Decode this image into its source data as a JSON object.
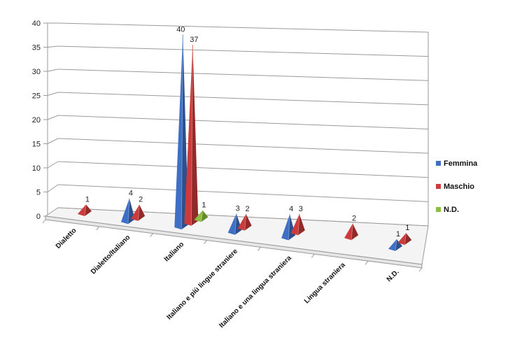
{
  "chart_data": {
    "type": "bar",
    "style": "3d-pyramid",
    "categories": [
      "Dialetto",
      "Dialetto/Italiano",
      "Italiano",
      "Italiano e più lingue straniere",
      "Italiano e una lingua straniera",
      "Lingua straniera",
      "N.D."
    ],
    "series": [
      {
        "name": "Femmina",
        "color": "#3f6fc4",
        "values": [
          0,
          4,
          40,
          3,
          4,
          0,
          1
        ]
      },
      {
        "name": "Maschio",
        "color": "#cc3b3b",
        "values": [
          1,
          2,
          37,
          2,
          3,
          2,
          1
        ]
      },
      {
        "name": "N.D.",
        "color": "#8cbf3f",
        "values": [
          0,
          0,
          1,
          0,
          0,
          0,
          0
        ]
      }
    ],
    "y_ticks": [
      "0",
      "5",
      "10",
      "15",
      "20",
      "25",
      "30",
      "35",
      "40"
    ],
    "ylim": [
      0,
      40
    ],
    "grid": true,
    "legend_position": "right"
  }
}
